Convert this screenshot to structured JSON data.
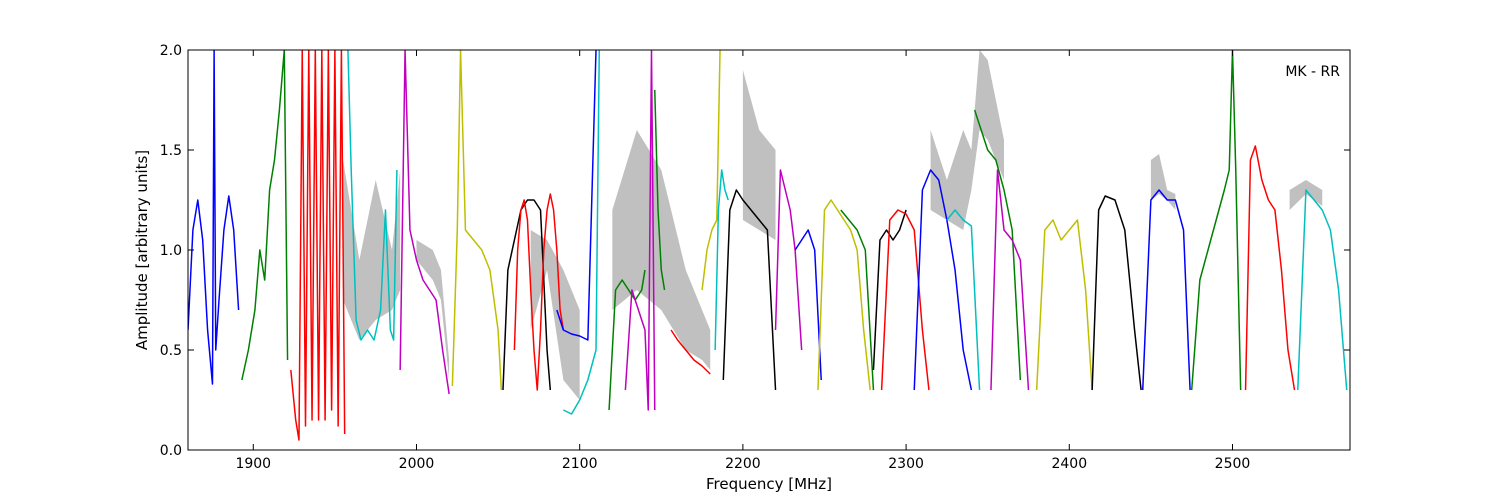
{
  "chart_data": {
    "type": "line",
    "title": "",
    "annotation": "MK - RR",
    "xlabel": "Frequency [MHz]",
    "ylabel": "Amplitude [arbitrary units]",
    "xlim": [
      1860,
      2572
    ],
    "ylim": [
      0.0,
      2.0
    ],
    "xticks": [
      1900,
      2000,
      2100,
      2200,
      2300,
      2400,
      2500
    ],
    "xtick_labels": [
      "1900",
      "2000",
      "2100",
      "2200",
      "2300",
      "2400",
      "2500"
    ],
    "yticks": [
      0.0,
      0.5,
      1.0,
      1.5,
      2.0
    ],
    "ytick_labels": [
      "0.0",
      "0.5",
      "1.0",
      "1.5",
      "2.0"
    ],
    "grid": false,
    "legend": "none",
    "envelope_color": "#c0c0c0",
    "envelope": [
      {
        "x": [
          1955,
          1965,
          1975,
          1985,
          1990
        ],
        "y": [
          0.75,
          0.55,
          0.65,
          0.7,
          0.8
        ],
        "yu": [
          1.45,
          0.95,
          1.35,
          1.0,
          1.4
        ]
      },
      {
        "x": [
          2000,
          2010,
          2015,
          2020
        ],
        "y": [
          0.95,
          0.85,
          0.75,
          0.35
        ],
        "yu": [
          1.05,
          1.0,
          0.9,
          0.45
        ]
      },
      {
        "x": [
          2070,
          2080,
          2090,
          2100
        ],
        "y": [
          0.6,
          0.9,
          0.35,
          0.25
        ],
        "yu": [
          1.1,
          1.05,
          0.9,
          0.7
        ]
      },
      {
        "x": [
          2120,
          2135,
          2150,
          2165,
          2175,
          2180
        ],
        "y": [
          0.7,
          0.8,
          0.7,
          0.5,
          0.45,
          0.4
        ],
        "yu": [
          1.2,
          1.6,
          1.4,
          0.9,
          0.7,
          0.6
        ]
      },
      {
        "x": [
          2200,
          2210,
          2220
        ],
        "y": [
          1.15,
          1.1,
          1.05
        ],
        "yu": [
          1.9,
          1.6,
          1.5
        ]
      },
      {
        "x": [
          2315,
          2325,
          2335,
          2340,
          2345,
          2350,
          2355,
          2360
        ],
        "y": [
          1.2,
          1.15,
          1.1,
          1.3,
          1.6,
          1.55,
          1.45,
          1.35
        ],
        "yu": [
          1.6,
          1.35,
          1.6,
          1.5,
          2.0,
          1.95,
          1.75,
          1.55
        ]
      },
      {
        "x": [
          2450,
          2455,
          2460,
          2465
        ],
        "y": [
          1.25,
          1.28,
          1.25,
          1.2
        ],
        "yu": [
          1.45,
          1.48,
          1.3,
          1.28
        ]
      },
      {
        "x": [
          2535,
          2545,
          2555
        ],
        "y": [
          1.2,
          1.28,
          1.22
        ],
        "yu": [
          1.3,
          1.35,
          1.3
        ]
      }
    ],
    "series": [
      {
        "color": "#0000ff",
        "x": [
          1860,
          1863,
          1866,
          1869,
          1872,
          1875,
          1876,
          1877,
          1879,
          1882,
          1885,
          1888,
          1891
        ],
        "y": [
          0.6,
          1.1,
          1.25,
          1.05,
          0.6,
          0.33,
          2.0,
          0.5,
          0.75,
          1.1,
          1.27,
          1.1,
          0.7
        ]
      },
      {
        "color": "#008000",
        "x": [
          1893,
          1897,
          1901,
          1904,
          1907,
          1910,
          1913,
          1916,
          1919,
          1921
        ],
        "y": [
          0.35,
          0.5,
          0.7,
          1.0,
          0.85,
          1.3,
          1.45,
          1.7,
          2.0,
          0.45
        ]
      },
      {
        "color": "#ff0000",
        "x": [
          1923,
          1926,
          1928,
          1930,
          1932,
          1934,
          1936,
          1938,
          1940,
          1942,
          1944,
          1946,
          1948,
          1950,
          1952,
          1954,
          1956
        ],
        "y": [
          0.4,
          0.15,
          0.05,
          2.0,
          0.12,
          2.0,
          0.15,
          2.0,
          0.15,
          2.0,
          0.15,
          2.0,
          0.2,
          2.0,
          0.12,
          2.0,
          0.08
        ]
      },
      {
        "color": "#00bfbf",
        "x": [
          1958,
          1960,
          1963,
          1966,
          1970,
          1974,
          1978,
          1981,
          1984,
          1986,
          1988
        ],
        "y": [
          2.0,
          1.4,
          0.65,
          0.55,
          0.6,
          0.55,
          0.7,
          1.2,
          0.6,
          0.55,
          1.4
        ]
      },
      {
        "color": "#bf00bf",
        "x": [
          1990,
          1993,
          1996,
          2000,
          2004,
          2008,
          2012,
          2016,
          2020
        ],
        "y": [
          0.4,
          2.0,
          1.1,
          0.95,
          0.85,
          0.8,
          0.75,
          0.5,
          0.28
        ]
      },
      {
        "color": "#bfbf00",
        "x": [
          2022,
          2025,
          2027,
          2030,
          2035,
          2040,
          2045,
          2050,
          2052
        ],
        "y": [
          0.32,
          1.1,
          2.0,
          1.1,
          1.05,
          1.0,
          0.9,
          0.6,
          0.3
        ]
      },
      {
        "color": "#000000",
        "x": [
          2053,
          2056,
          2060,
          2064,
          2068,
          2072,
          2076,
          2080,
          2082
        ],
        "y": [
          0.3,
          0.9,
          1.05,
          1.2,
          1.25,
          1.25,
          1.2,
          0.5,
          0.3
        ]
      },
      {
        "color": "#ff0000",
        "x": [
          2060,
          2062,
          2064,
          2066,
          2068,
          2070,
          2072,
          2074,
          2076,
          2078,
          2080,
          2082,
          2084,
          2086,
          2088,
          2090
        ],
        "y": [
          0.5,
          1.0,
          1.2,
          1.25,
          1.15,
          0.8,
          0.5,
          0.3,
          0.6,
          1.0,
          1.2,
          1.28,
          1.2,
          1.0,
          0.7,
          0.6
        ]
      },
      {
        "color": "#0000ff",
        "x": [
          2086,
          2090,
          2095,
          2100,
          2105,
          2110
        ],
        "y": [
          0.7,
          0.6,
          0.58,
          0.57,
          0.55,
          2.0
        ]
      },
      {
        "color": "#00bfbf",
        "x": [
          2090,
          2095,
          2100,
          2105,
          2110,
          2112
        ],
        "y": [
          0.2,
          0.18,
          0.25,
          0.35,
          0.5,
          2.0
        ]
      },
      {
        "color": "#008000",
        "x": [
          2118,
          2122,
          2126,
          2130,
          2134,
          2138,
          2140
        ],
        "y": [
          0.2,
          0.8,
          0.85,
          0.8,
          0.75,
          0.8,
          0.9
        ]
      },
      {
        "color": "#bf00bf",
        "x": [
          2128,
          2132,
          2136,
          2140,
          2142,
          2144,
          2146
        ],
        "y": [
          0.3,
          0.8,
          0.7,
          0.6,
          0.2,
          2.0,
          0.2
        ]
      },
      {
        "color": "#008000",
        "x": [
          2146,
          2148,
          2150,
          2152
        ],
        "y": [
          1.8,
          1.2,
          0.9,
          0.8
        ]
      },
      {
        "color": "#ff0000",
        "x": [
          2156,
          2160,
          2165,
          2170,
          2175,
          2180
        ],
        "y": [
          0.6,
          0.55,
          0.5,
          0.45,
          0.42,
          0.38
        ]
      },
      {
        "color": "#bfbf00",
        "x": [
          2175,
          2178,
          2181,
          2184,
          2186
        ],
        "y": [
          0.8,
          1.0,
          1.1,
          1.15,
          2.0
        ]
      },
      {
        "color": "#00bfbf",
        "x": [
          2183,
          2185,
          2187,
          2189,
          2191
        ],
        "y": [
          0.5,
          1.2,
          1.4,
          1.3,
          1.25
        ]
      },
      {
        "color": "#000000",
        "x": [
          2188,
          2192,
          2196,
          2200,
          2205,
          2210,
          2215,
          2220
        ],
        "y": [
          0.35,
          1.2,
          1.3,
          1.25,
          1.2,
          1.15,
          1.1,
          0.3
        ]
      },
      {
        "color": "#bf00bf",
        "x": [
          2220,
          2223,
          2226,
          2229,
          2232,
          2236
        ],
        "y": [
          0.6,
          1.4,
          1.3,
          1.2,
          1.0,
          0.5
        ]
      },
      {
        "color": "#0000ff",
        "x": [
          2232,
          2236,
          2240,
          2244,
          2248
        ],
        "y": [
          1.0,
          1.05,
          1.1,
          1.0,
          0.35
        ]
      },
      {
        "color": "#bfbf00",
        "x": [
          2246,
          2250,
          2254,
          2258,
          2262,
          2266,
          2270,
          2274,
          2278
        ],
        "y": [
          0.3,
          1.2,
          1.25,
          1.2,
          1.15,
          1.1,
          1.0,
          0.6,
          0.3
        ]
      },
      {
        "color": "#008000",
        "x": [
          2260,
          2265,
          2270,
          2275,
          2280
        ],
        "y": [
          1.2,
          1.15,
          1.1,
          1.0,
          0.3
        ]
      },
      {
        "color": "#000000",
        "x": [
          2280,
          2284,
          2288,
          2292,
          2296,
          2300
        ],
        "y": [
          0.4,
          1.05,
          1.1,
          1.05,
          1.1,
          1.2
        ]
      },
      {
        "color": "#ff0000",
        "x": [
          2285,
          2290,
          2295,
          2300,
          2305,
          2310,
          2314
        ],
        "y": [
          0.3,
          1.15,
          1.2,
          1.18,
          1.1,
          0.6,
          0.3
        ]
      },
      {
        "color": "#0000ff",
        "x": [
          2305,
          2310,
          2315,
          2320,
          2325,
          2330,
          2335,
          2340
        ],
        "y": [
          0.3,
          1.3,
          1.4,
          1.35,
          1.15,
          0.9,
          0.5,
          0.3
        ]
      },
      {
        "color": "#00bfbf",
        "x": [
          2325,
          2330,
          2335,
          2340,
          2345
        ],
        "y": [
          1.15,
          1.2,
          1.15,
          1.12,
          0.3
        ]
      },
      {
        "color": "#008000",
        "x": [
          2342,
          2346,
          2350,
          2355,
          2360,
          2365,
          2370
        ],
        "y": [
          1.7,
          1.6,
          1.5,
          1.45,
          1.3,
          1.1,
          0.35
        ]
      },
      {
        "color": "#bf00bf",
        "x": [
          2352,
          2356,
          2360,
          2365,
          2370,
          2375
        ],
        "y": [
          0.3,
          1.4,
          1.1,
          1.05,
          0.95,
          0.3
        ]
      },
      {
        "color": "#bfbf00",
        "x": [
          2380,
          2385,
          2390,
          2395,
          2400,
          2405,
          2410,
          2414
        ],
        "y": [
          0.3,
          1.1,
          1.15,
          1.05,
          1.1,
          1.15,
          0.8,
          0.3
        ]
      },
      {
        "color": "#000000",
        "x": [
          2414,
          2418,
          2422,
          2428,
          2434,
          2440,
          2444
        ],
        "y": [
          0.3,
          1.2,
          1.27,
          1.25,
          1.1,
          0.6,
          0.3
        ]
      },
      {
        "color": "#0000ff",
        "x": [
          2445,
          2450,
          2455,
          2460,
          2465,
          2470,
          2474
        ],
        "y": [
          0.3,
          1.25,
          1.3,
          1.25,
          1.25,
          1.1,
          0.3
        ]
      },
      {
        "color": "#008000",
        "x": [
          2475,
          2480,
          2485,
          2490,
          2495,
          2498,
          2500,
          2502,
          2505
        ],
        "y": [
          0.3,
          0.85,
          1.0,
          1.15,
          1.3,
          1.4,
          2.0,
          1.4,
          0.3
        ]
      },
      {
        "color": "#ff0000",
        "x": [
          2508,
          2511,
          2514,
          2518,
          2522,
          2526,
          2530,
          2534,
          2538
        ],
        "y": [
          0.3,
          1.45,
          1.52,
          1.35,
          1.25,
          1.2,
          0.9,
          0.5,
          0.3
        ]
      },
      {
        "color": "#00bfbf",
        "x": [
          2540,
          2545,
          2550,
          2555,
          2560,
          2565,
          2570
        ],
        "y": [
          0.3,
          1.3,
          1.25,
          1.2,
          1.1,
          0.8,
          0.3
        ]
      }
    ]
  }
}
